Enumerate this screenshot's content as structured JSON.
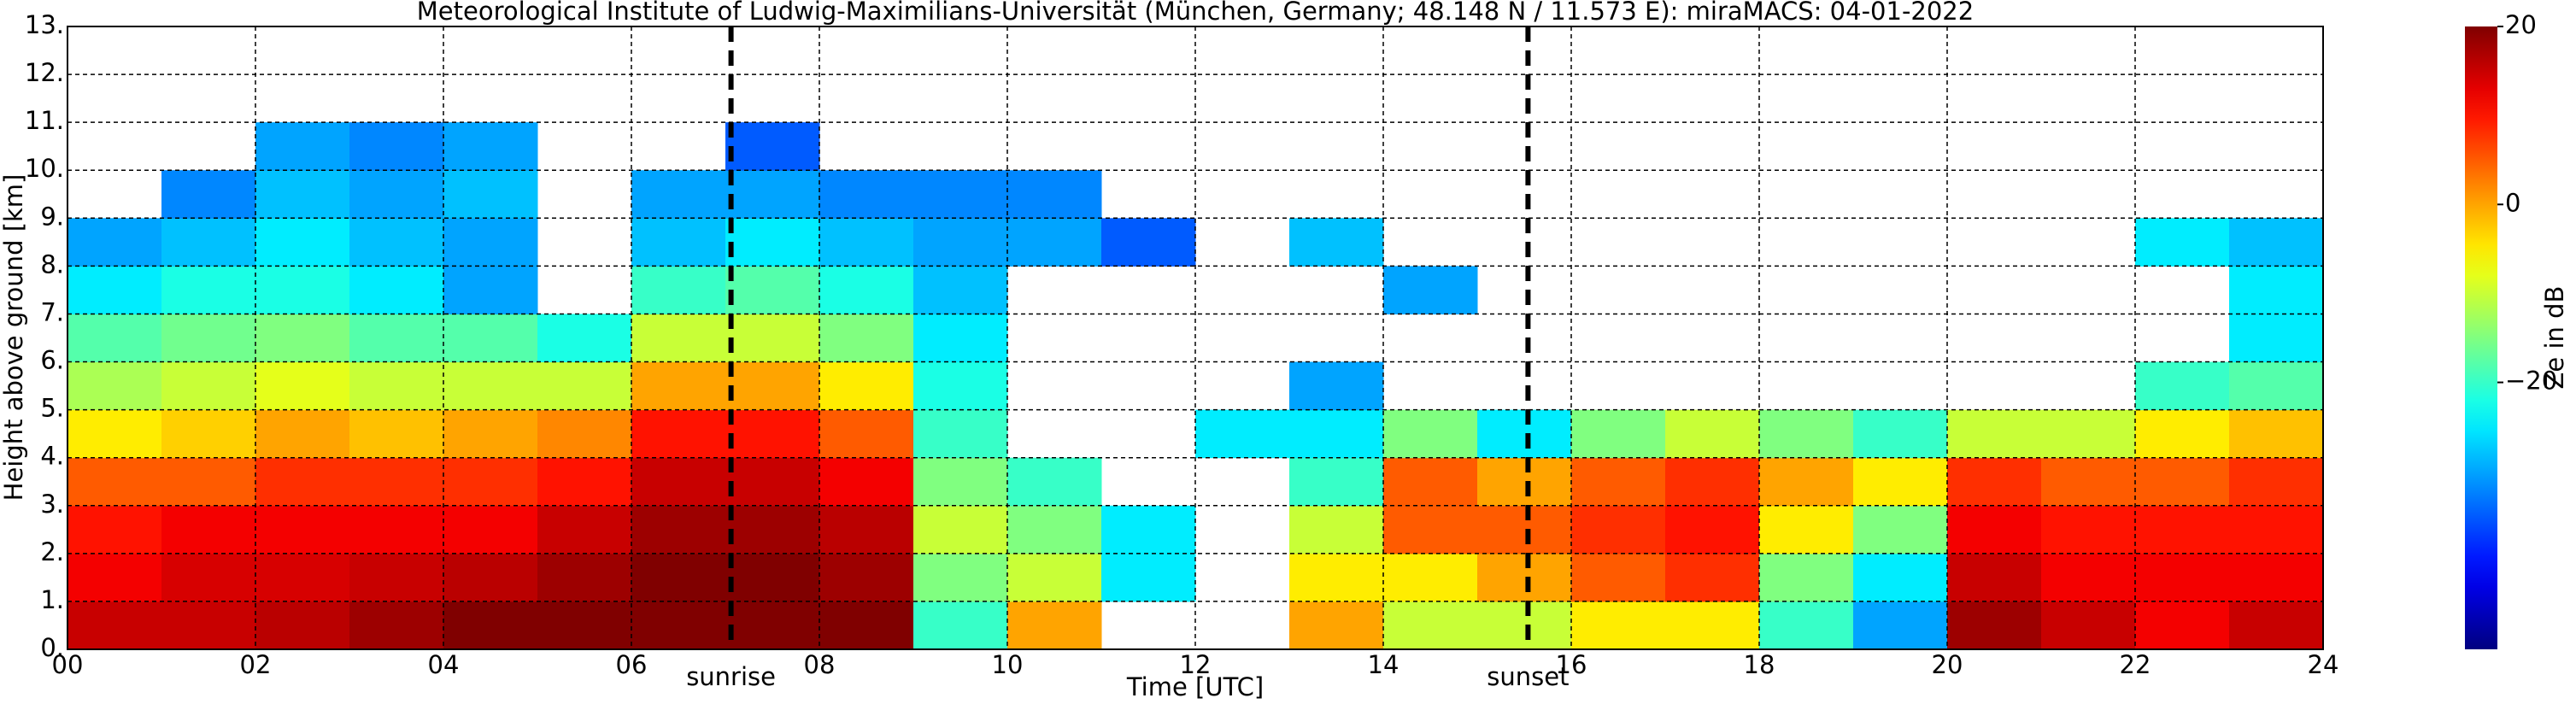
{
  "chart_data": {
    "type": "heatmap",
    "title": "Meteorological Institute of Ludwig-Maximilians-Universität (München, Germany; 48.148 N / 11.573 E):    miraMACS: 04-01-2022",
    "xlabel": "Time [UTC]",
    "ylabel": "Height above ground [km]",
    "colorbar_label": "Ze in dB",
    "colormap": "jet",
    "grid": true,
    "x": [
      0.5,
      1.5,
      2.5,
      3.5,
      4.5,
      5.5,
      6.5,
      7.5,
      8.5,
      9.5,
      10.5,
      11.5,
      12.5,
      13.5,
      14.5,
      15.5,
      16.5,
      17.5,
      18.5,
      19.5,
      20.5,
      21.5,
      22.5,
      23.5
    ],
    "y": [
      0.5,
      1.5,
      2.5,
      3.5,
      4.5,
      5.5,
      6.5,
      7.5,
      8.5,
      9.5,
      10.5
    ],
    "z": [
      [
        15,
        15,
        16,
        18,
        20,
        20,
        20,
        20,
        20,
        -20,
        0,
        null,
        null,
        0,
        -10,
        -10,
        -5,
        -5,
        -20,
        -30,
        18,
        15,
        12,
        15
      ],
      [
        12,
        14,
        14,
        15,
        16,
        18,
        20,
        20,
        18,
        -15,
        -10,
        -25,
        null,
        -5,
        -5,
        0,
        5,
        8,
        -15,
        -25,
        15,
        12,
        12,
        12
      ],
      [
        10,
        12,
        12,
        12,
        12,
        15,
        18,
        18,
        16,
        -10,
        -15,
        -25,
        null,
        -10,
        5,
        5,
        8,
        10,
        -5,
        -15,
        12,
        10,
        10,
        10
      ],
      [
        5,
        5,
        8,
        8,
        8,
        10,
        15,
        15,
        12,
        -15,
        -20,
        null,
        null,
        -20,
        5,
        0,
        5,
        8,
        0,
        -5,
        8,
        5,
        5,
        8
      ],
      [
        -5,
        -3,
        0,
        -2,
        0,
        2,
        10,
        10,
        5,
        -20,
        null,
        null,
        -25,
        -25,
        -15,
        -25,
        -15,
        -10,
        -15,
        -20,
        -10,
        -10,
        -5,
        -2
      ],
      [
        -12,
        -10,
        -8,
        -10,
        -10,
        -10,
        0,
        0,
        -5,
        -22,
        null,
        null,
        null,
        -30,
        null,
        null,
        null,
        null,
        null,
        null,
        null,
        null,
        -20,
        -18
      ],
      [
        -18,
        -16,
        -15,
        -18,
        -18,
        -22,
        -10,
        -10,
        -15,
        -25,
        null,
        null,
        null,
        null,
        null,
        null,
        null,
        null,
        null,
        null,
        null,
        null,
        null,
        -25
      ],
      [
        -25,
        -22,
        -22,
        -25,
        -30,
        null,
        -20,
        -18,
        -22,
        -28,
        null,
        null,
        null,
        null,
        -30,
        null,
        null,
        null,
        null,
        null,
        null,
        null,
        null,
        -25
      ],
      [
        -30,
        -28,
        -25,
        -28,
        -30,
        null,
        -28,
        -25,
        -28,
        -30,
        -30,
        -35,
        null,
        -28,
        null,
        null,
        null,
        null,
        null,
        null,
        null,
        null,
        -25,
        -28
      ],
      [
        null,
        -32,
        -28,
        -30,
        -28,
        null,
        -30,
        -30,
        -32,
        -32,
        -32,
        null,
        null,
        null,
        null,
        null,
        null,
        null,
        null,
        null,
        null,
        null,
        null,
        null
      ],
      [
        null,
        null,
        -30,
        -32,
        -30,
        null,
        null,
        -35,
        null,
        null,
        null,
        null,
        null,
        null,
        null,
        null,
        null,
        null,
        null,
        null,
        null,
        null,
        null,
        null
      ]
    ],
    "xlim": [
      0,
      24
    ],
    "ylim": [
      0,
      13
    ],
    "xticks": [
      {
        "value": 0,
        "label": "00"
      },
      {
        "value": 2,
        "label": "02"
      },
      {
        "value": 4,
        "label": "04"
      },
      {
        "value": 6,
        "label": "06"
      },
      {
        "value": 8,
        "label": "08"
      },
      {
        "value": 10,
        "label": "10"
      },
      {
        "value": 12,
        "label": "12"
      },
      {
        "value": 14,
        "label": "14"
      },
      {
        "value": 16,
        "label": "16"
      },
      {
        "value": 18,
        "label": "18"
      },
      {
        "value": 20,
        "label": "20"
      },
      {
        "value": 22,
        "label": "22"
      },
      {
        "value": 24,
        "label": "24"
      }
    ],
    "yticks": [
      {
        "value": 0,
        "label": "0."
      },
      {
        "value": 1,
        "label": "1."
      },
      {
        "value": 2,
        "label": "2."
      },
      {
        "value": 3,
        "label": "3."
      },
      {
        "value": 4,
        "label": "4."
      },
      {
        "value": 5,
        "label": "5."
      },
      {
        "value": 6,
        "label": "6."
      },
      {
        "value": 7,
        "label": "7."
      },
      {
        "value": 8,
        "label": "8."
      },
      {
        "value": 9,
        "label": "9."
      },
      {
        "value": 10,
        "label": "10."
      },
      {
        "value": 11,
        "label": "11."
      },
      {
        "value": 12,
        "label": "12."
      },
      {
        "value": 13,
        "label": "13."
      }
    ],
    "clim": [
      -50,
      20
    ],
    "cticks": [
      20,
      0,
      {
        "value": -20,
        "label": "−20"
      }
    ],
    "annotations": [
      {
        "x": 7.06,
        "label": "sunrise"
      },
      {
        "x": 15.54,
        "label": "sunset"
      }
    ]
  }
}
